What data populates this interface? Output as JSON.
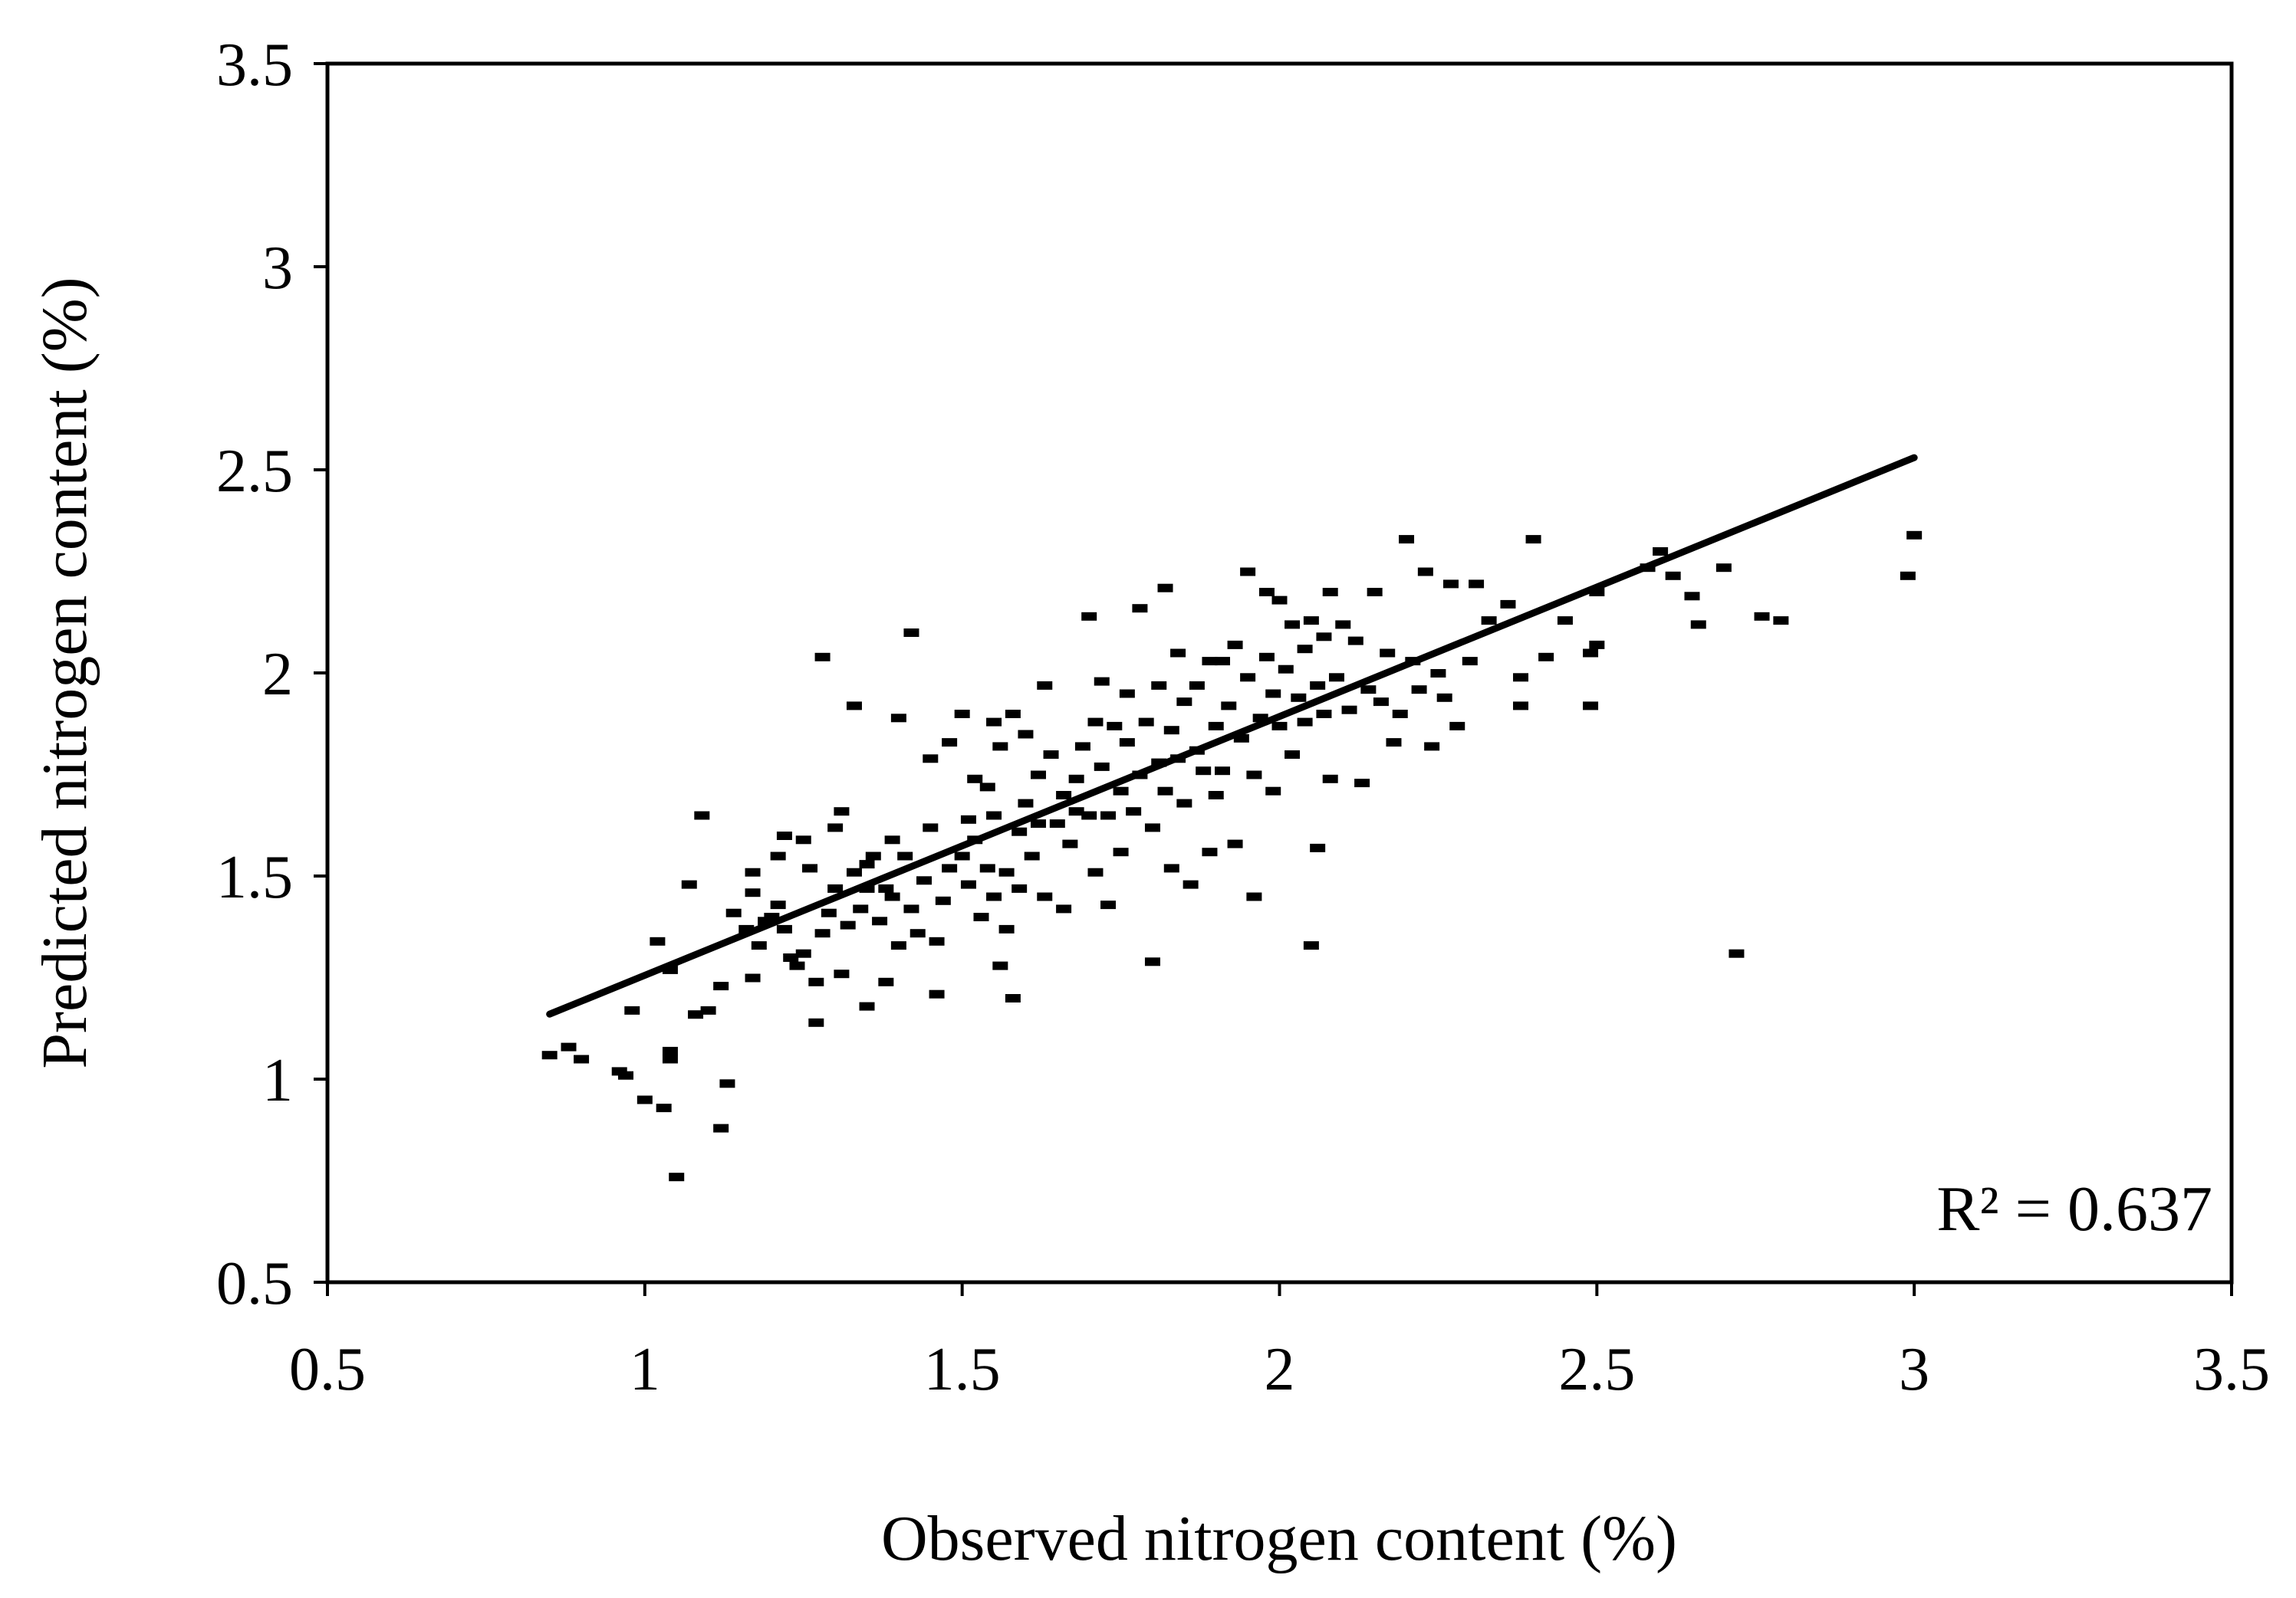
{
  "chart_data": {
    "type": "scatter",
    "title": "",
    "xlabel": "Observed nitrogen content (%)",
    "ylabel": "Predicted nitrogen content (%)",
    "xlim": [
      0.5,
      3.5
    ],
    "ylim": [
      0.5,
      3.5
    ],
    "xticks": [
      "0.5",
      "1",
      "1.5",
      "2",
      "2.5",
      "3",
      "3.5"
    ],
    "yticks": [
      "0.5",
      "1",
      "1.5",
      "2",
      "2.5",
      "3",
      "3.5"
    ],
    "grid": false,
    "marker_color": "#000000",
    "annotation": "R² = 0.637",
    "trendline": {
      "x": [
        0.85,
        3.0
      ],
      "y": [
        1.16,
        2.53
      ]
    },
    "points": [
      [
        0.85,
        1.06
      ],
      [
        0.88,
        1.08
      ],
      [
        0.9,
        1.05
      ],
      [
        0.96,
        1.02
      ],
      [
        0.98,
        1.17
      ],
      [
        0.97,
        1.01
      ],
      [
        1.0,
        0.95
      ],
      [
        1.03,
        0.93
      ],
      [
        1.04,
        1.07
      ],
      [
        1.04,
        1.05
      ],
      [
        1.05,
        0.76
      ],
      [
        1.02,
        1.34
      ],
      [
        1.04,
        1.27
      ],
      [
        1.07,
        1.48
      ],
      [
        1.08,
        1.16
      ],
      [
        1.1,
        1.17
      ],
      [
        1.09,
        1.65
      ],
      [
        1.12,
        0.88
      ],
      [
        1.13,
        0.99
      ],
      [
        1.14,
        1.41
      ],
      [
        1.12,
        1.23
      ],
      [
        1.17,
        1.46
      ],
      [
        1.16,
        1.37
      ],
      [
        1.17,
        1.51
      ],
      [
        1.18,
        1.33
      ],
      [
        1.17,
        1.25
      ],
      [
        1.19,
        1.39
      ],
      [
        1.2,
        1.4
      ],
      [
        1.21,
        1.43
      ],
      [
        1.21,
        1.55
      ],
      [
        1.22,
        1.37
      ],
      [
        1.23,
        1.3
      ],
      [
        1.22,
        1.6
      ],
      [
        1.24,
        1.28
      ],
      [
        1.25,
        1.31
      ],
      [
        1.26,
        1.52
      ],
      [
        1.25,
        1.59
      ],
      [
        1.27,
        1.14
      ],
      [
        1.27,
        1.24
      ],
      [
        1.28,
        1.36
      ],
      [
        1.28,
        2.04
      ],
      [
        1.29,
        1.41
      ],
      [
        1.3,
        1.47
      ],
      [
        1.3,
        1.62
      ],
      [
        1.31,
        1.66
      ],
      [
        1.31,
        1.26
      ],
      [
        1.32,
        1.38
      ],
      [
        1.33,
        1.51
      ],
      [
        1.33,
        1.92
      ],
      [
        1.34,
        1.42
      ],
      [
        1.35,
        1.53
      ],
      [
        1.35,
        1.47
      ],
      [
        1.35,
        1.18
      ],
      [
        1.36,
        1.55
      ],
      [
        1.37,
        1.39
      ],
      [
        1.38,
        1.47
      ],
      [
        1.38,
        1.24
      ],
      [
        1.39,
        1.59
      ],
      [
        1.39,
        1.45
      ],
      [
        1.4,
        1.33
      ],
      [
        1.4,
        1.89
      ],
      [
        1.41,
        1.55
      ],
      [
        1.42,
        2.1
      ],
      [
        1.42,
        1.42
      ],
      [
        1.43,
        1.36
      ],
      [
        1.44,
        1.49
      ],
      [
        1.45,
        1.79
      ],
      [
        1.45,
        1.62
      ],
      [
        1.46,
        1.34
      ],
      [
        1.46,
        1.21
      ],
      [
        1.47,
        1.44
      ],
      [
        1.48,
        1.52
      ],
      [
        1.48,
        1.83
      ],
      [
        1.5,
        1.9
      ],
      [
        1.5,
        1.55
      ],
      [
        1.51,
        1.64
      ],
      [
        1.51,
        1.48
      ],
      [
        1.52,
        1.59
      ],
      [
        1.52,
        1.74
      ],
      [
        1.53,
        1.4
      ],
      [
        1.54,
        1.52
      ],
      [
        1.54,
        1.72
      ],
      [
        1.55,
        1.65
      ],
      [
        1.55,
        1.45
      ],
      [
        1.55,
        1.88
      ],
      [
        1.56,
        1.28
      ],
      [
        1.56,
        1.82
      ],
      [
        1.57,
        1.51
      ],
      [
        1.57,
        1.37
      ],
      [
        1.58,
        1.9
      ],
      [
        1.58,
        1.2
      ],
      [
        1.59,
        1.61
      ],
      [
        1.59,
        1.47
      ],
      [
        1.6,
        1.85
      ],
      [
        1.6,
        1.68
      ],
      [
        1.61,
        1.55
      ],
      [
        1.62,
        1.63
      ],
      [
        1.62,
        1.75
      ],
      [
        1.63,
        1.97
      ],
      [
        1.63,
        1.45
      ],
      [
        1.64,
        1.8
      ],
      [
        1.65,
        1.63
      ],
      [
        1.66,
        1.7
      ],
      [
        1.66,
        1.42
      ],
      [
        1.67,
        1.58
      ],
      [
        1.68,
        1.74
      ],
      [
        1.68,
        1.66
      ],
      [
        1.69,
        1.82
      ],
      [
        1.7,
        1.65
      ],
      [
        1.7,
        2.14
      ],
      [
        1.71,
        1.51
      ],
      [
        1.71,
        1.88
      ],
      [
        1.72,
        1.77
      ],
      [
        1.72,
        1.98
      ],
      [
        1.73,
        1.43
      ],
      [
        1.73,
        1.65
      ],
      [
        1.74,
        1.87
      ],
      [
        1.75,
        1.71
      ],
      [
        1.75,
        1.56
      ],
      [
        1.76,
        1.95
      ],
      [
        1.76,
        1.83
      ],
      [
        1.77,
        1.66
      ],
      [
        1.78,
        2.16
      ],
      [
        1.78,
        1.75
      ],
      [
        1.79,
        1.88
      ],
      [
        1.8,
        1.62
      ],
      [
        1.8,
        1.29
      ],
      [
        1.81,
        1.97
      ],
      [
        1.81,
        1.78
      ],
      [
        1.82,
        2.21
      ],
      [
        1.82,
        1.71
      ],
      [
        1.83,
        1.86
      ],
      [
        1.83,
        1.52
      ],
      [
        1.84,
        1.79
      ],
      [
        1.84,
        2.05
      ],
      [
        1.85,
        1.93
      ],
      [
        1.85,
        1.68
      ],
      [
        1.86,
        1.48
      ],
      [
        1.87,
        1.81
      ],
      [
        1.87,
        1.97
      ],
      [
        1.88,
        1.76
      ],
      [
        1.89,
        2.03
      ],
      [
        1.89,
        1.56
      ],
      [
        1.9,
        1.87
      ],
      [
        1.9,
        1.7
      ],
      [
        1.91,
        2.03
      ],
      [
        1.91,
        1.76
      ],
      [
        1.92,
        1.92
      ],
      [
        1.93,
        1.58
      ],
      [
        1.93,
        2.07
      ],
      [
        1.94,
        1.84
      ],
      [
        1.95,
        2.25
      ],
      [
        1.95,
        1.99
      ],
      [
        1.96,
        1.45
      ],
      [
        1.96,
        1.75
      ],
      [
        1.97,
        1.89
      ],
      [
        1.98,
        2.04
      ],
      [
        1.98,
        2.2
      ],
      [
        1.99,
        1.95
      ],
      [
        1.99,
        1.71
      ],
      [
        2.0,
        2.18
      ],
      [
        2.0,
        1.87
      ],
      [
        2.01,
        2.01
      ],
      [
        2.02,
        2.12
      ],
      [
        2.02,
        1.8
      ],
      [
        2.03,
        1.94
      ],
      [
        2.04,
        2.06
      ],
      [
        2.04,
        1.88
      ],
      [
        2.05,
        1.33
      ],
      [
        2.05,
        2.13
      ],
      [
        2.06,
        1.97
      ],
      [
        2.06,
        1.57
      ],
      [
        2.07,
        2.09
      ],
      [
        2.07,
        1.9
      ],
      [
        2.08,
        2.2
      ],
      [
        2.08,
        1.74
      ],
      [
        2.09,
        1.99
      ],
      [
        2.1,
        2.12
      ],
      [
        2.11,
        1.91
      ],
      [
        2.12,
        2.08
      ],
      [
        2.13,
        1.73
      ],
      [
        2.14,
        1.96
      ],
      [
        2.15,
        2.2
      ],
      [
        2.16,
        1.93
      ],
      [
        2.17,
        2.05
      ],
      [
        2.18,
        1.83
      ],
      [
        2.19,
        1.9
      ],
      [
        2.2,
        2.33
      ],
      [
        2.21,
        2.03
      ],
      [
        2.22,
        1.96
      ],
      [
        2.23,
        2.25
      ],
      [
        2.24,
        1.82
      ],
      [
        2.25,
        2.0
      ],
      [
        2.26,
        1.94
      ],
      [
        2.27,
        2.22
      ],
      [
        2.28,
        1.87
      ],
      [
        2.3,
        2.03
      ],
      [
        2.31,
        2.22
      ],
      [
        2.33,
        2.13
      ],
      [
        2.36,
        2.17
      ],
      [
        2.38,
        1.99
      ],
      [
        2.38,
        1.92
      ],
      [
        2.4,
        2.33
      ],
      [
        2.42,
        2.04
      ],
      [
        2.45,
        2.13
      ],
      [
        2.49,
        2.05
      ],
      [
        2.49,
        1.92
      ],
      [
        2.5,
        2.2
      ],
      [
        2.5,
        2.07
      ],
      [
        2.58,
        2.26
      ],
      [
        2.6,
        2.3
      ],
      [
        2.62,
        2.24
      ],
      [
        2.65,
        2.19
      ],
      [
        2.66,
        2.12
      ],
      [
        2.7,
        2.26
      ],
      [
        2.72,
        1.31
      ],
      [
        2.76,
        2.14
      ],
      [
        2.79,
        2.13
      ],
      [
        2.99,
        2.24
      ],
      [
        3.0,
        2.34
      ]
    ]
  }
}
